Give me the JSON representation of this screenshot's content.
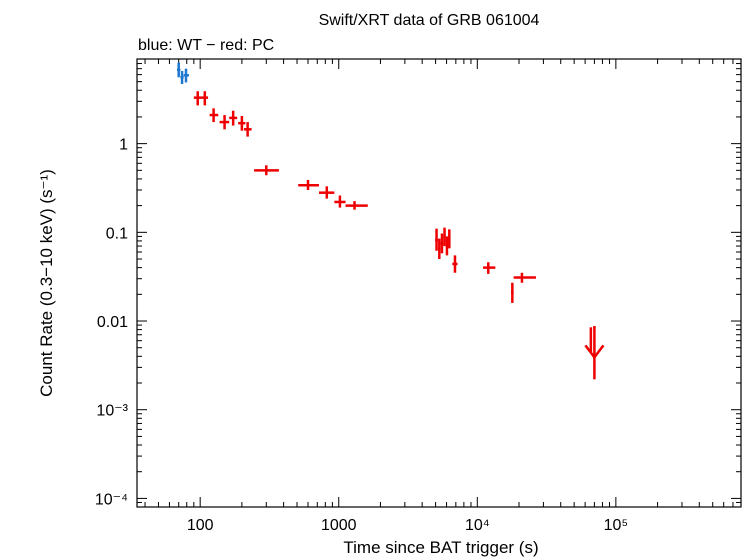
{
  "chart_data": {
    "type": "scatter",
    "title": "Swift/XRT data of GRB 061004",
    "subtitle": "blue: WT − red: PC",
    "xlabel": "Time since BAT trigger (s)",
    "ylabel": "Count Rate (0.3−10 keV) (s⁻¹)",
    "xscale": "log",
    "yscale": "log",
    "xlim": [
      35,
      800000
    ],
    "ylim": [
      8e-05,
      9
    ],
    "x_ticks": [
      {
        "value": 100,
        "label": "100"
      },
      {
        "value": 1000,
        "label": "1000"
      },
      {
        "value": 10000,
        "label": "10⁴"
      },
      {
        "value": 100000,
        "label": "10⁵"
      }
    ],
    "y_ticks": [
      {
        "value": 1,
        "label": "1"
      },
      {
        "value": 0.1,
        "label": "0.1"
      },
      {
        "value": 0.01,
        "label": "0.01"
      },
      {
        "value": 0.001,
        "label": "10⁻³"
      },
      {
        "value": 0.0001,
        "label": "10⁻⁴"
      }
    ],
    "series": [
      {
        "name": "WT",
        "color": "#1f78d0",
        "points": [
          {
            "x": 70,
            "xlo": 68,
            "xhi": 72,
            "y": 6.8,
            "ylo": 5.6,
            "yhi": 8.2
          },
          {
            "x": 74,
            "xlo": 72,
            "xhi": 76,
            "y": 5.6,
            "ylo": 4.7,
            "yhi": 6.6
          },
          {
            "x": 79,
            "xlo": 76,
            "xhi": 83,
            "y": 5.9,
            "ylo": 4.9,
            "yhi": 7.0
          }
        ]
      },
      {
        "name": "PC",
        "color": "#ee0000",
        "points": [
          {
            "x": 96,
            "xlo": 90,
            "xhi": 103,
            "y": 3.3,
            "ylo": 2.7,
            "yhi": 3.9
          },
          {
            "x": 108,
            "xlo": 103,
            "xhi": 114,
            "y": 3.3,
            "ylo": 2.7,
            "yhi": 3.9
          },
          {
            "x": 125,
            "xlo": 117,
            "xhi": 135,
            "y": 2.1,
            "ylo": 1.75,
            "yhi": 2.5
          },
          {
            "x": 150,
            "xlo": 138,
            "xhi": 162,
            "y": 1.75,
            "ylo": 1.45,
            "yhi": 2.1
          },
          {
            "x": 173,
            "xlo": 162,
            "xhi": 185,
            "y": 1.95,
            "ylo": 1.6,
            "yhi": 2.35
          },
          {
            "x": 200,
            "xlo": 188,
            "xhi": 212,
            "y": 1.7,
            "ylo": 1.4,
            "yhi": 2.05
          },
          {
            "x": 220,
            "xlo": 207,
            "xhi": 235,
            "y": 1.45,
            "ylo": 1.2,
            "yhi": 1.75
          },
          {
            "x": 300,
            "xlo": 245,
            "xhi": 370,
            "y": 0.5,
            "ylo": 0.44,
            "yhi": 0.57
          },
          {
            "x": 600,
            "xlo": 510,
            "xhi": 720,
            "y": 0.34,
            "ylo": 0.3,
            "yhi": 0.39
          },
          {
            "x": 820,
            "xlo": 720,
            "xhi": 930,
            "y": 0.28,
            "ylo": 0.24,
            "yhi": 0.33
          },
          {
            "x": 1020,
            "xlo": 930,
            "xhi": 1120,
            "y": 0.22,
            "ylo": 0.19,
            "yhi": 0.26
          },
          {
            "x": 1300,
            "xlo": 1120,
            "xhi": 1620,
            "y": 0.2,
            "ylo": 0.18,
            "yhi": 0.225
          },
          {
            "x": 5080,
            "xlo": 4960,
            "xhi": 5200,
            "y": 0.082,
            "ylo": 0.062,
            "yhi": 0.11
          },
          {
            "x": 5320,
            "xlo": 5200,
            "xhi": 5440,
            "y": 0.065,
            "ylo": 0.05,
            "yhi": 0.085
          },
          {
            "x": 5560,
            "xlo": 5440,
            "xhi": 5680,
            "y": 0.075,
            "ylo": 0.058,
            "yhi": 0.097
          },
          {
            "x": 5800,
            "xlo": 5680,
            "xhi": 5920,
            "y": 0.09,
            "ylo": 0.07,
            "yhi": 0.113
          },
          {
            "x": 6040,
            "xlo": 5920,
            "xhi": 6160,
            "y": 0.07,
            "ylo": 0.055,
            "yhi": 0.09
          },
          {
            "x": 6280,
            "xlo": 6160,
            "xhi": 6400,
            "y": 0.085,
            "ylo": 0.066,
            "yhi": 0.108
          },
          {
            "x": 6900,
            "xlo": 6600,
            "xhi": 7200,
            "y": 0.044,
            "ylo": 0.035,
            "yhi": 0.055
          },
          {
            "x": 12000,
            "xlo": 11000,
            "xhi": 13500,
            "y": 0.04,
            "ylo": 0.034,
            "yhi": 0.046
          },
          {
            "x": 17900,
            "xlo": 17500,
            "xhi": 18300,
            "y": 0.021,
            "ylo": 0.016,
            "yhi": 0.027
          },
          {
            "x": 21000,
            "xlo": 18300,
            "xhi": 26500,
            "y": 0.031,
            "ylo": 0.027,
            "yhi": 0.035
          },
          {
            "x": 66000,
            "xlo": 65000,
            "xhi": 67000,
            "y": 0.0062,
            "ylo": 0.0044,
            "yhi": 0.0085
          }
        ]
      }
    ],
    "upper_limits": [
      {
        "series": "PC",
        "x": 70000,
        "xlo": 68500,
        "xhi": 71500,
        "y": 0.0085,
        "arrow_to": 0.0022
      }
    ]
  }
}
